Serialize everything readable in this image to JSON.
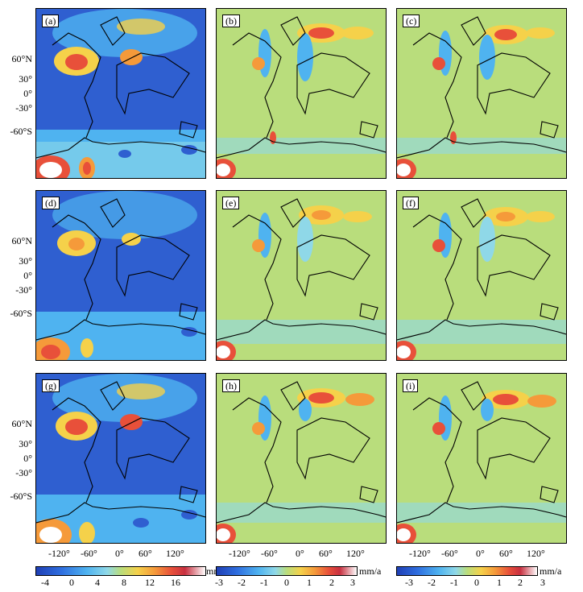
{
  "panels": [
    {
      "label": "(a)",
      "scale": "wide"
    },
    {
      "label": "(b)",
      "scale": "narrow"
    },
    {
      "label": "(c)",
      "scale": "narrow"
    },
    {
      "label": "(d)",
      "scale": "wide"
    },
    {
      "label": "(e)",
      "scale": "narrow"
    },
    {
      "label": "(f)",
      "scale": "narrow"
    },
    {
      "label": "(g)",
      "scale": "wide"
    },
    {
      "label": "(h)",
      "scale": "narrow"
    },
    {
      "label": "(i)",
      "scale": "narrow"
    }
  ],
  "lat_labels": [
    "60°N",
    "30°",
    "0°",
    "-30°",
    "-60°S"
  ],
  "lon_labels": [
    "-120°",
    "-60°",
    "0°",
    "60°",
    "120°"
  ],
  "colorbars": [
    {
      "unit": "mm/a",
      "ticks": [
        "-4",
        "0",
        "4",
        "8",
        "12",
        "16"
      ]
    },
    {
      "unit": "mm/a",
      "ticks": [
        "-3",
        "-2",
        "-1",
        "0",
        "1",
        "2",
        "3"
      ]
    },
    {
      "unit": "mm/a",
      "ticks": [
        "-3",
        "-2",
        "-1",
        "0",
        "1",
        "2",
        "3"
      ]
    }
  ],
  "colors": {
    "wide_background": "#2f5fd0",
    "narrow_background": "#b9dd7c",
    "scale": [
      "#1f3fb5",
      "#2f6fe0",
      "#4fb3f0",
      "#8fd8e8",
      "#b9dd7c",
      "#f5d14a",
      "#f59a3a",
      "#e8503a",
      "#c83040",
      "#ffffff"
    ]
  }
}
